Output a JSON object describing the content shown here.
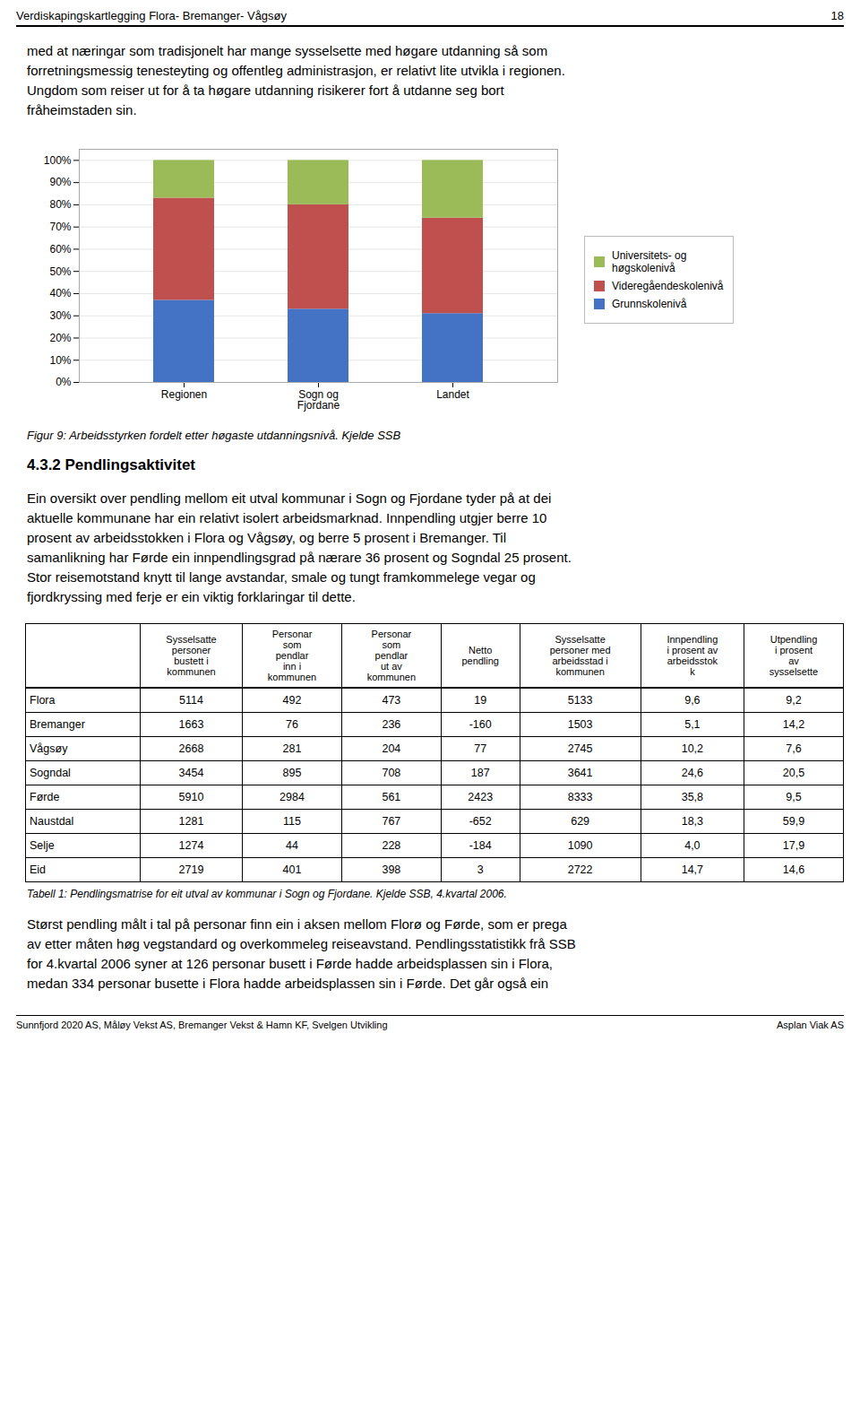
{
  "page": {
    "header": [
      "Verdiskapingskartlegging Flora- Bremanger- Vågsøy",
      "18"
    ],
    "intro": [
      "med at næringar som tradisjonelt har mange sysselsette med høgare utdanning så som",
      "forretningsmessig tenesteyting og offentleg administrasjon, er relativt lite utvikla i regionen.",
      "Ungdom som reiser ut for å ta høgare utdanning risikerer fort å utdanne seg bort",
      "fråheimstaden sin."
    ],
    "section_title": "4.3.2  Pendlingsaktivitet",
    "section": [
      "Ein oversikt over pendling mellom eit utval kommunar i Sogn og Fjordane tyder på at dei",
      "aktuelle kommunane har ein relativt isolert arbeidsmarknad. Innpendling utgjer berre 10",
      "prosent av arbeidsstokken i Flora og Vågsøy, og berre 5 prosent i Bremanger. Til",
      "samanlikning har Førde ein innpendlingsgrad på nærare 36 prosent og Sogndal 25 prosent.",
      "Stor reisemotstand knytt til lange avstandar, smale og tungt framkommelege vegar og",
      "fjordkryssing med ferje er ein viktig forklaringar til dette."
    ],
    "outro": [
      "Størst pendling målt i tal på personar finn ein i aksen mellom Florø og Førde, som er prega",
      "av etter måten høg vegstandard og overkommeleg reiseavstand. Pendlingsstatistikk frå SSB",
      "for 4.kvartal 2006 syner at 126 personar busett i Førde hadde arbeidsplassen sin i Flora,",
      "medan 334 personar busette i Flora hadde arbeidsplassen sin i Førde. Det går også ein"
    ],
    "footer": [
      "Sunnfjord 2020 AS, Måløy Vekst AS, Bremanger Vekst & Hamn KF, Svelgen Utvikling",
      "Asplan Viak AS"
    ]
  },
  "chart_data": [
    {
      "type": "bar",
      "title": "Figur 9: Arbeidsstyrken fordelt etter høgaste utdanningsnivå. Kjelde SSB",
      "stacked": true,
      "categories": [
        "Regionen",
        "Sogn og\nFjordane",
        "Landet"
      ],
      "series": [
        {
          "name": "Grunnskolenivå",
          "color": "#4472C4",
          "values": [
            0.37,
            0.33,
            0.31
          ]
        },
        {
          "name": "Videregåendeskolenivå",
          "color": "#C0504D",
          "values": [
            0.46,
            0.47,
            0.43
          ]
        },
        {
          "name": "Universitets- og\nhøgskolenivå",
          "color": "#9BBB59",
          "values": [
            0.17,
            0.2,
            0.26
          ]
        }
      ],
      "ylim": [
        0,
        1.05
      ],
      "yticks": [
        {
          "value": 0.0,
          "label": "0%"
        },
        {
          "value": 0.1,
          "label": "10%"
        },
        {
          "value": 0.2,
          "label": "20%"
        },
        {
          "value": 0.3,
          "label": "30%"
        },
        {
          "value": 0.4,
          "label": "40%"
        },
        {
          "value": 0.5,
          "label": "50%"
        },
        {
          "value": 0.6,
          "label": "60%"
        },
        {
          "value": 0.7,
          "label": "70%"
        },
        {
          "value": 0.8,
          "label": "80%"
        },
        {
          "value": 0.9,
          "label": "90%"
        },
        {
          "value": 1.0,
          "label": "100%"
        }
      ],
      "grid": true,
      "legend": "right"
    },
    {
      "type": "table",
      "title": "Tabell 1: Pendlingsmatrise for eit utval av kommunar i Sogn og Fjordane. Kjelde SSB, 4.kvartal 2006.",
      "categories": [
        "Flora",
        "Bremanger",
        "Vågsøy",
        "Sogndal",
        "Førde",
        "Naustdal",
        "Selje",
        "Eid"
      ],
      "series": [
        {
          "name": "Sysselsatte\npersoner\nbustett i\nkommunen",
          "values": [
            5114,
            1663,
            2668,
            3454,
            5910,
            1281,
            1274,
            2719
          ]
        },
        {
          "name": "Personar\nsom\npendlar\ninn i\nkommunen",
          "values": [
            492,
            76,
            281,
            895,
            2984,
            115,
            44,
            401
          ]
        },
        {
          "name": "Personar\nsom\npendlar\nut av\nkommunen",
          "values": [
            473,
            236,
            204,
            708,
            561,
            767,
            228,
            398
          ]
        },
        {
          "name": "Netto\npendling",
          "values": [
            19,
            -160,
            77,
            187,
            2423,
            -652,
            -184,
            3
          ]
        },
        {
          "name": "Sysselsatte\npersoner med\narbeidsstad i\nkommunen",
          "values": [
            5133,
            1503,
            2745,
            3641,
            8333,
            629,
            1090,
            2722
          ]
        },
        {
          "name": "Innpendling\ni prosent av\narbeidsstok\nk",
          "values": [
            9.6,
            5.1,
            10.2,
            24.6,
            35.8,
            18.3,
            4.0,
            14.7
          ],
          "value_labels": [
            "9,6",
            "5,1",
            "10,2",
            "24,6",
            "35,8",
            "18,3",
            "4,0",
            "14,7"
          ]
        },
        {
          "name": "Utpendling\ni prosent\nav\nsysselsette",
          "values": [
            9.2,
            14.2,
            7.6,
            20.5,
            9.5,
            59.9,
            17.9,
            14.6
          ],
          "value_labels": [
            "9,2",
            "14,2",
            "7,6",
            "20,5",
            "9,5",
            "59,9",
            "17,9",
            "14,6"
          ]
        }
      ]
    }
  ]
}
